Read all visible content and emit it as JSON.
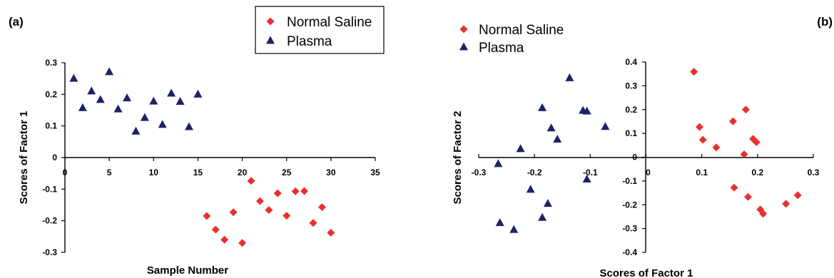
{
  "colors": {
    "normal_saline": "#e8302e",
    "plasma": "#1d2266"
  },
  "chart_data": [
    {
      "type": "scatter",
      "panel_label": "(a)",
      "xlabel": "Sample Number",
      "ylabel": "Scores of Factor 1",
      "xlim": [
        0,
        35
      ],
      "ylim": [
        -0.3,
        0.3
      ],
      "x_ticks": [
        0,
        5,
        10,
        15,
        20,
        25,
        30,
        35
      ],
      "y_ticks": [
        -0.3,
        -0.2,
        -0.1,
        0,
        0.1,
        0.2,
        0.3
      ],
      "x_tick_labels": [
        "0",
        "5",
        "10",
        "15",
        "20",
        "25",
        "30",
        "35"
      ],
      "y_tick_labels": [
        "-0.3",
        "-0.2",
        "-0.1",
        "0",
        "0.1",
        "0.2",
        "0.3"
      ],
      "legend": [
        "Normal Saline",
        "Plasma"
      ],
      "series": [
        {
          "name": "Normal Saline",
          "marker": "diamond",
          "points": [
            [
              16,
              -0.185
            ],
            [
              17,
              -0.228
            ],
            [
              18,
              -0.26
            ],
            [
              19,
              -0.173
            ],
            [
              20,
              -0.27
            ],
            [
              21,
              -0.074
            ],
            [
              22,
              -0.138
            ],
            [
              23,
              -0.166
            ],
            [
              24,
              -0.113
            ],
            [
              25,
              -0.184
            ],
            [
              26,
              -0.107
            ],
            [
              27,
              -0.106
            ],
            [
              28,
              -0.207
            ],
            [
              29,
              -0.157
            ],
            [
              30,
              -0.238
            ]
          ]
        },
        {
          "name": "Plasma",
          "marker": "triangle",
          "points": [
            [
              1,
              0.25
            ],
            [
              2,
              0.157
            ],
            [
              3,
              0.21
            ],
            [
              4,
              0.183
            ],
            [
              5,
              0.271
            ],
            [
              6,
              0.153
            ],
            [
              7,
              0.188
            ],
            [
              8,
              0.083
            ],
            [
              9,
              0.126
            ],
            [
              10,
              0.178
            ],
            [
              11,
              0.104
            ],
            [
              12,
              0.203
            ],
            [
              13,
              0.177
            ],
            [
              14,
              0.097
            ],
            [
              15,
              0.2
            ]
          ]
        }
      ]
    },
    {
      "type": "scatter",
      "panel_label": "(b)",
      "xlabel": "Scores of Factor 1",
      "ylabel": "Scores of Factor 2",
      "xlim": [
        -0.3,
        0.3
      ],
      "ylim": [
        -0.4,
        0.4
      ],
      "x_ticks": [
        -0.3,
        -0.2,
        -0.1,
        0,
        0.1,
        0.2,
        0.3
      ],
      "y_ticks": [
        -0.4,
        -0.3,
        -0.2,
        -0.1,
        0,
        0.1,
        0.2,
        0.3,
        0.4
      ],
      "x_tick_labels": [
        "-0.3",
        "-0.2",
        "-0.1",
        "0",
        "0.1",
        "0.2",
        "0.3"
      ],
      "y_tick_labels": [
        "-0.4",
        "-0.3",
        "-0.2",
        "-0.1",
        "0",
        "0.1",
        "0.2",
        "0.3",
        "0.4"
      ],
      "legend": [
        "Normal Saline",
        "Plasma"
      ],
      "series": [
        {
          "name": "Normal Saline",
          "marker": "diamond",
          "points": [
            [
              0.086,
              0.359
            ],
            [
              0.096,
              0.127
            ],
            [
              0.102,
              0.073
            ],
            [
              0.126,
              0.041
            ],
            [
              0.156,
              0.151
            ],
            [
              0.158,
              -0.128
            ],
            [
              0.176,
              0.012
            ],
            [
              0.179,
              0.2
            ],
            [
              0.183,
              -0.167
            ],
            [
              0.192,
              0.077
            ],
            [
              0.198,
              0.063
            ],
            [
              0.205,
              -0.22
            ],
            [
              0.21,
              -0.238
            ],
            [
              0.251,
              -0.196
            ],
            [
              0.272,
              -0.16
            ]
          ]
        },
        {
          "name": "Plasma",
          "marker": "triangle",
          "points": [
            [
              -0.265,
              -0.028
            ],
            [
              -0.262,
              -0.276
            ],
            [
              -0.237,
              -0.305
            ],
            [
              -0.225,
              0.035
            ],
            [
              -0.207,
              -0.136
            ],
            [
              -0.186,
              0.207
            ],
            [
              -0.186,
              -0.254
            ],
            [
              -0.176,
              -0.195
            ],
            [
              -0.17,
              0.122
            ],
            [
              -0.159,
              0.075
            ],
            [
              -0.137,
              0.333
            ],
            [
              -0.113,
              0.196
            ],
            [
              -0.106,
              0.193
            ],
            [
              -0.106,
              -0.093
            ],
            [
              -0.073,
              0.128
            ]
          ]
        }
      ]
    }
  ]
}
